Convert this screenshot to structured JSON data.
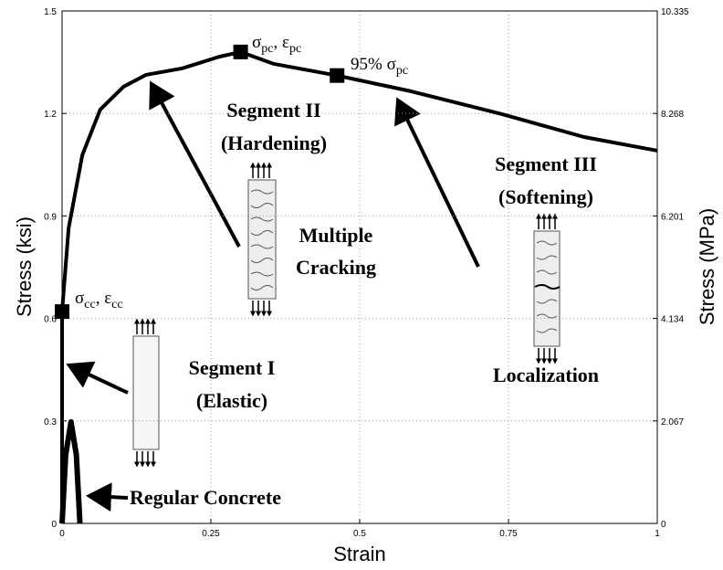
{
  "chart_data": {
    "type": "line",
    "xlabel": "Strain",
    "ylabel": "Stress (ksi)",
    "y2label": "Stress (MPa)",
    "xlim": [
      0,
      1
    ],
    "xticks": [
      0,
      0.25,
      0.5,
      0.75,
      1
    ],
    "ylim": [
      0,
      1.5
    ],
    "yticks": [
      0,
      0.3,
      0.6,
      0.9,
      1.2,
      1.5
    ],
    "y2lim": [
      0,
      10.335
    ],
    "y2ticks": [
      0,
      2.067,
      4.134,
      6.201,
      8.268,
      10.335
    ],
    "grid": true,
    "series": [
      {
        "color": "#000000",
        "x": [
          0,
          0,
          0.011,
          0.034,
          0.064,
          0.103,
          0.141,
          0.202,
          0.264,
          0.3,
          0.356,
          0.462,
          0.586,
          0.739,
          0.877,
          1.0
        ],
        "y": [
          0,
          0.62,
          0.864,
          1.078,
          1.211,
          1.278,
          1.313,
          1.332,
          1.366,
          1.38,
          1.345,
          1.311,
          1.265,
          1.198,
          1.131,
          1.091
        ]
      },
      {
        "name": "Regular Concrete",
        "color": "#000000",
        "x": [
          0,
          0.006,
          0.015,
          0.024,
          0.03
        ],
        "y": [
          0,
          0.2,
          0.297,
          0.2,
          0
        ]
      }
    ],
    "points": [
      {
        "x": 0,
        "y": 0.62,
        "label_parts": [
          "σ",
          "cc",
          ", ε",
          "cc"
        ]
      },
      {
        "x": 0.3,
        "y": 1.38,
        "label_parts": [
          "σ",
          "pc",
          ", ε",
          "pc"
        ]
      },
      {
        "x": 0.462,
        "y": 1.311,
        "label_parts": [
          "95% σ",
          "pc"
        ]
      }
    ],
    "annotations": [
      "Segment II",
      "(Hardening)",
      "Multiple",
      "Cracking",
      "Segment III",
      "(Softening)",
      "Localization",
      "Segment I",
      "(Elastic)"
    ]
  }
}
